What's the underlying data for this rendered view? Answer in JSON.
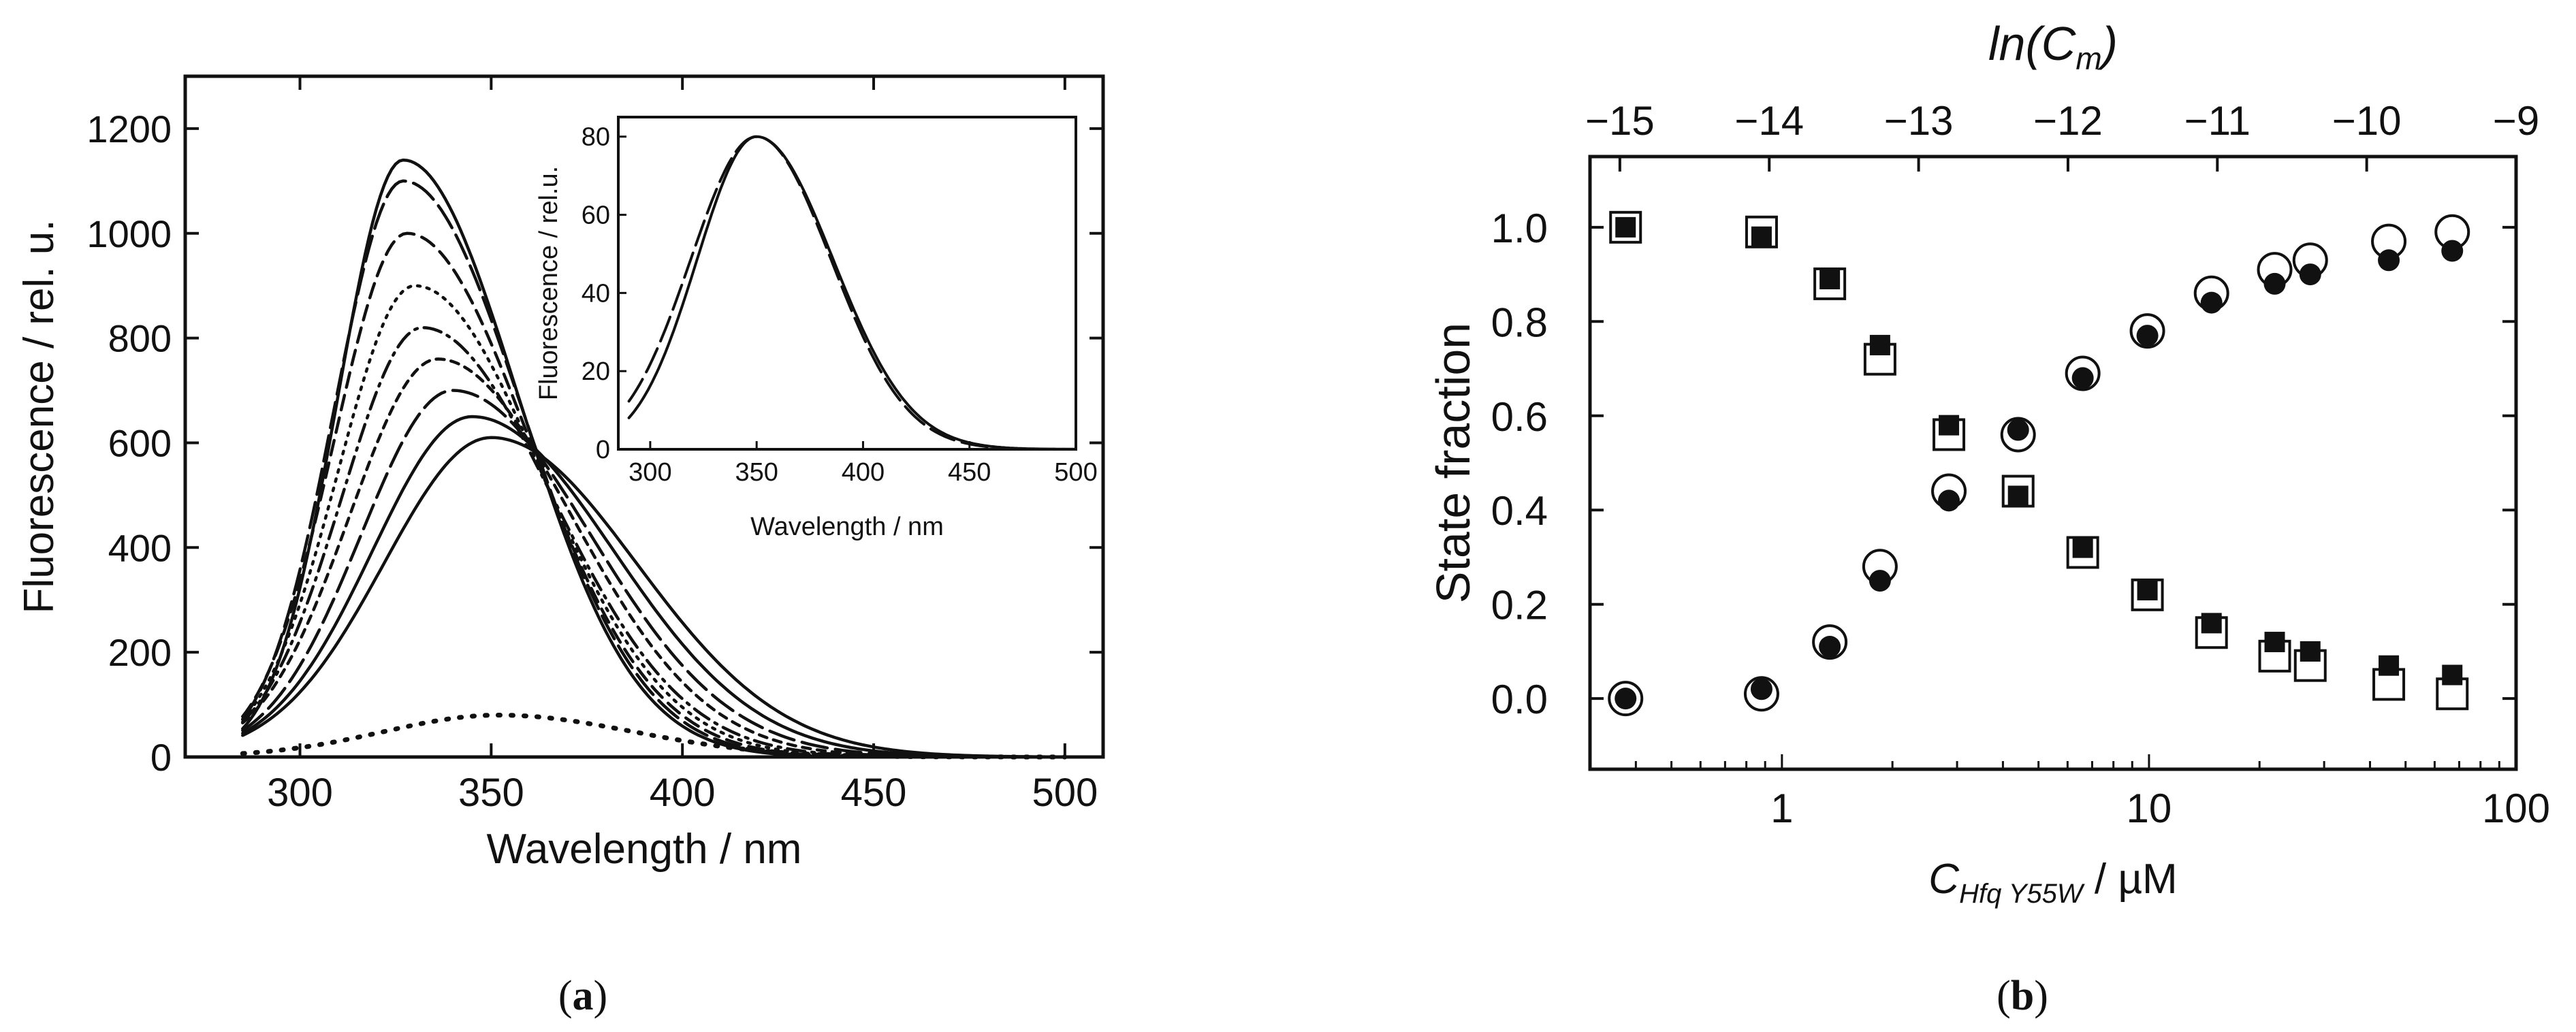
{
  "chart_data": [
    {
      "type": "line",
      "panel_label": "a",
      "xlabel": "Wavelength  / nm",
      "ylabel": "Fluorescence  / rel. u.",
      "xlim": [
        270,
        510
      ],
      "ylim": [
        0,
        1300
      ],
      "xticks": [
        "300",
        "350",
        "400",
        "450",
        "500"
      ],
      "yticks": [
        "0",
        "200",
        "400",
        "600",
        "800",
        "1000",
        "1200"
      ],
      "grid": false,
      "series": [
        {
          "name": "spectrum 1",
          "style": "solid",
          "peak_x": 327,
          "peak_y": 1140,
          "sigma_left": 17,
          "sigma_right": 30
        },
        {
          "name": "spectrum 2",
          "style": "long-dash",
          "peak_x": 327,
          "peak_y": 1100,
          "sigma_left": 18,
          "sigma_right": 31
        },
        {
          "name": "spectrum 3",
          "style": "dash",
          "peak_x": 328,
          "peak_y": 1000,
          "sigma_left": 19,
          "sigma_right": 32
        },
        {
          "name": "spectrum 4",
          "style": "dot",
          "peak_x": 330,
          "peak_y": 900,
          "sigma_left": 20,
          "sigma_right": 33
        },
        {
          "name": "spectrum 5",
          "style": "dash-dot",
          "peak_x": 332,
          "peak_y": 820,
          "sigma_left": 21,
          "sigma_right": 34
        },
        {
          "name": "spectrum 6",
          "style": "short-dash",
          "peak_x": 336,
          "peak_y": 760,
          "sigma_left": 23,
          "sigma_right": 35
        },
        {
          "name": "spectrum 7",
          "style": "long-dash",
          "peak_x": 340,
          "peak_y": 700,
          "sigma_left": 24,
          "sigma_right": 36
        },
        {
          "name": "spectrum 8",
          "style": "solid",
          "peak_x": 345,
          "peak_y": 650,
          "sigma_left": 26,
          "sigma_right": 37
        },
        {
          "name": "spectrum 9",
          "style": "solid",
          "peak_x": 350,
          "peak_y": 610,
          "sigma_left": 28,
          "sigma_right": 38
        },
        {
          "name": "buffer",
          "style": "sparse-dot",
          "peak_x": 352,
          "peak_y": 80,
          "sigma_left": 30,
          "sigma_right": 35
        }
      ],
      "inset": {
        "xlabel": "Wavelength / nm",
        "ylabel": "Fluorescence / rel.u.",
        "xlim": [
          285,
          500
        ],
        "ylim": [
          0,
          85
        ],
        "xticks": [
          "300",
          "350",
          "400",
          "450",
          "500"
        ],
        "yticks": [
          "0",
          "20",
          "40",
          "60",
          "80"
        ],
        "series": [
          {
            "name": "normalized A",
            "style": "solid",
            "peak_x": 350,
            "peak_y": 80,
            "sigma_left": 28,
            "sigma_right": 36
          },
          {
            "name": "normalized B",
            "style": "long-dash",
            "peak_x": 350,
            "peak_y": 80,
            "sigma_left": 31,
            "sigma_right": 35
          }
        ]
      }
    },
    {
      "type": "scatter",
      "panel_label": "b",
      "xlabel_main": "C",
      "xlabel_subscript": "Hfq Y55W",
      "xlabel_unit": " / µM",
      "ylabel": "State fraction",
      "top_axis_label_main": "ln(C",
      "top_axis_label_sub": "m",
      "top_axis_label_end": ")",
      "xscale": "log",
      "xlim": [
        0.3,
        100
      ],
      "ylim": [
        -0.15,
        1.15
      ],
      "xticks": [
        "1",
        "10",
        "100"
      ],
      "yticks": [
        "0.0",
        "0.2",
        "0.4",
        "0.6",
        "0.8",
        "1.0"
      ],
      "top_xlim": [
        -15.2,
        -9.0
      ],
      "top_xticks": [
        "−15",
        "−14",
        "−13",
        "−12",
        "−11",
        "−10",
        "−9"
      ],
      "concentrations": [
        0.375,
        0.88,
        1.35,
        1.85,
        2.85,
        4.4,
        6.6,
        9.9,
        14.8,
        22.0,
        27.5,
        45.0,
        67.0
      ],
      "series": [
        {
          "name": "open squares",
          "marker": "open-square",
          "values": [
            1.0,
            0.99,
            0.88,
            0.72,
            0.56,
            0.44,
            0.31,
            0.22,
            0.14,
            0.09,
            0.07,
            0.03,
            0.01
          ]
        },
        {
          "name": "filled squares",
          "marker": "filled-square",
          "values": [
            1.0,
            0.98,
            0.89,
            0.75,
            0.58,
            0.43,
            0.32,
            0.23,
            0.16,
            0.12,
            0.1,
            0.07,
            0.05
          ]
        },
        {
          "name": "open circles",
          "marker": "open-circle",
          "values": [
            0.0,
            0.01,
            0.12,
            0.28,
            0.44,
            0.56,
            0.69,
            0.78,
            0.86,
            0.91,
            0.93,
            0.97,
            0.99
          ]
        },
        {
          "name": "filled circles",
          "marker": "filled-circle",
          "values": [
            0.0,
            0.02,
            0.11,
            0.25,
            0.42,
            0.57,
            0.68,
            0.77,
            0.84,
            0.88,
            0.9,
            0.93,
            0.95
          ]
        }
      ]
    }
  ]
}
